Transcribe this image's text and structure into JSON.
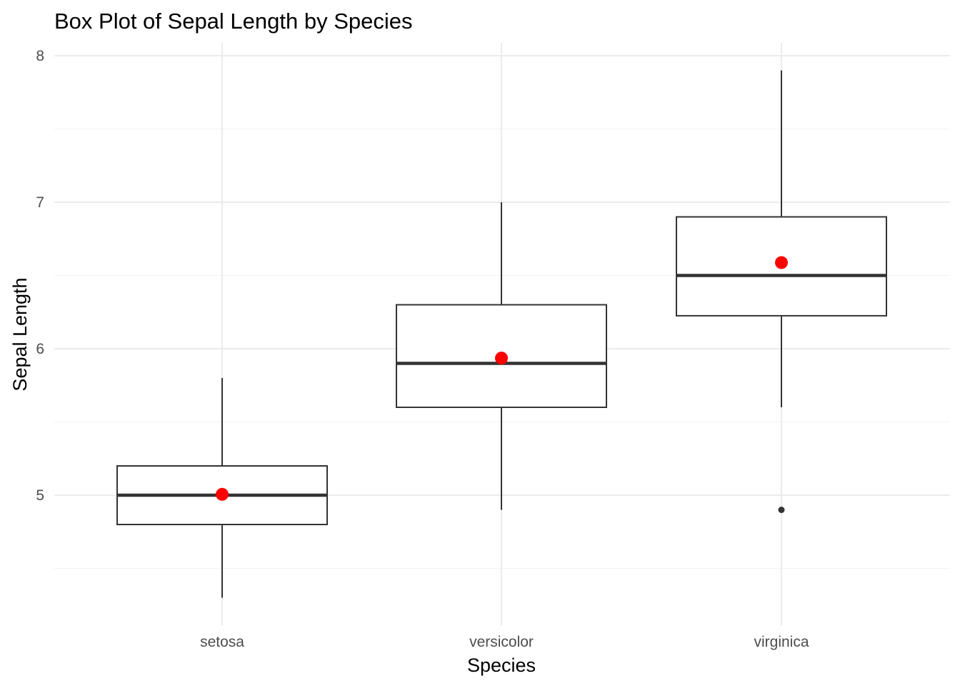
{
  "chart_data": {
    "type": "box",
    "title": "Box Plot of Sepal Length by Species",
    "xlabel": "Species",
    "ylabel": "Sepal Length",
    "categories": [
      "setosa",
      "versicolor",
      "virginica"
    ],
    "ylim": [
      4.3,
      8.0
    ],
    "yticks": [
      5,
      6,
      7,
      8
    ],
    "ytick_labels": [
      "5",
      "6",
      "7",
      "8"
    ],
    "grid": true,
    "series": [
      {
        "category": "setosa",
        "whisker_low": 4.3,
        "q1": 4.8,
        "median": 5.0,
        "q3": 5.2,
        "whisker_high": 5.8,
        "mean": 5.006,
        "outliers": []
      },
      {
        "category": "versicolor",
        "whisker_low": 4.9,
        "q1": 5.6,
        "median": 5.9,
        "q3": 6.3,
        "whisker_high": 7.0,
        "mean": 5.936,
        "outliers": []
      },
      {
        "category": "virginica",
        "whisker_low": 5.6,
        "q1": 6.225,
        "median": 6.5,
        "q3": 6.9,
        "whisker_high": 7.9,
        "mean": 6.588,
        "outliers": [
          4.9
        ]
      }
    ],
    "colors": {
      "box": "#333333",
      "mean_point": "#ff0000",
      "outlier": "#333333",
      "grid": "#ebebeb"
    }
  }
}
